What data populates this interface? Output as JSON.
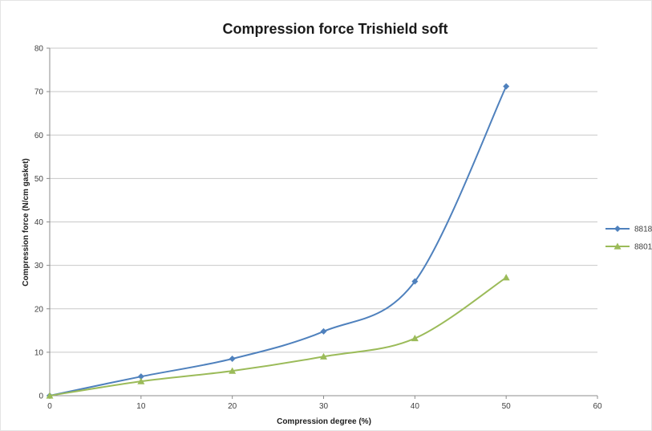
{
  "chart_data": {
    "type": "line",
    "title": "Compression force  Trishield soft",
    "xlabel": "Compression degree (%)",
    "ylabel": "Compression force (N/cm gasket)",
    "xlim": [
      0,
      60
    ],
    "ylim": [
      0,
      80
    ],
    "x_ticks": [
      0,
      10,
      20,
      30,
      40,
      50,
      60
    ],
    "y_ticks": [
      0,
      10,
      20,
      30,
      40,
      50,
      60,
      70,
      80
    ],
    "grid": "horizontal",
    "legend": "right",
    "series": [
      {
        "name": "8818",
        "color": "#4f81bd",
        "marker": "diamond",
        "x": [
          0,
          10,
          20,
          30,
          40,
          50
        ],
        "y": [
          0,
          4.4,
          8.5,
          14.8,
          26.3,
          71.2
        ]
      },
      {
        "name": "8801",
        "color": "#9bbb59",
        "marker": "triangle",
        "x": [
          0,
          10,
          20,
          30,
          40,
          50
        ],
        "y": [
          0,
          3.3,
          5.7,
          9.0,
          13.2,
          27.2
        ]
      }
    ]
  }
}
